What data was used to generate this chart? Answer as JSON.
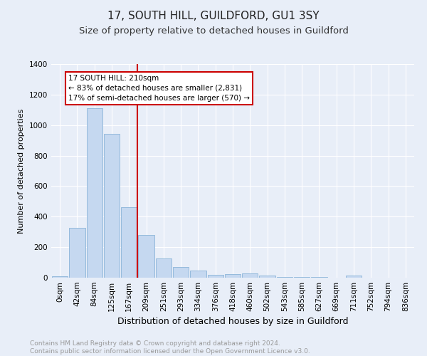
{
  "title": "17, SOUTH HILL, GUILDFORD, GU1 3SY",
  "subtitle": "Size of property relative to detached houses in Guildford",
  "xlabel": "Distribution of detached houses by size in Guildford",
  "ylabel": "Number of detached properties",
  "footer_line1": "Contains HM Land Registry data © Crown copyright and database right 2024.",
  "footer_line2": "Contains public sector information licensed under the Open Government Licence v3.0.",
  "categories": [
    "0sqm",
    "42sqm",
    "84sqm",
    "125sqm",
    "167sqm",
    "209sqm",
    "251sqm",
    "293sqm",
    "334sqm",
    "376sqm",
    "418sqm",
    "460sqm",
    "502sqm",
    "543sqm",
    "585sqm",
    "627sqm",
    "669sqm",
    "711sqm",
    "752sqm",
    "794sqm",
    "836sqm"
  ],
  "values": [
    10,
    325,
    1110,
    945,
    460,
    280,
    128,
    72,
    47,
    20,
    25,
    28,
    14,
    3,
    3,
    3,
    2,
    12,
    2,
    2,
    2
  ],
  "bar_color": "#c5d8f0",
  "bar_edge_color": "#8ab4d8",
  "vline_x_index": 5,
  "property_label": "17 SOUTH HILL: 210sqm",
  "annotation_line1": "← 83% of detached houses are smaller (2,831)",
  "annotation_line2": "17% of semi-detached houses are larger (570) →",
  "annotation_box_facecolor": "#ffffff",
  "annotation_box_edgecolor": "#cc0000",
  "vline_color": "#cc0000",
  "ylim": [
    0,
    1400
  ],
  "yticks": [
    0,
    200,
    400,
    600,
    800,
    1000,
    1200,
    1400
  ],
  "bg_color": "#e8eef8",
  "plot_bg_color": "#e8eef8",
  "grid_color": "#ffffff",
  "title_fontsize": 11,
  "subtitle_fontsize": 9.5,
  "xlabel_fontsize": 9,
  "ylabel_fontsize": 8,
  "tick_fontsize": 7.5,
  "annot_fontsize": 7.5,
  "footer_fontsize": 6.5,
  "footer_color": "#999999"
}
